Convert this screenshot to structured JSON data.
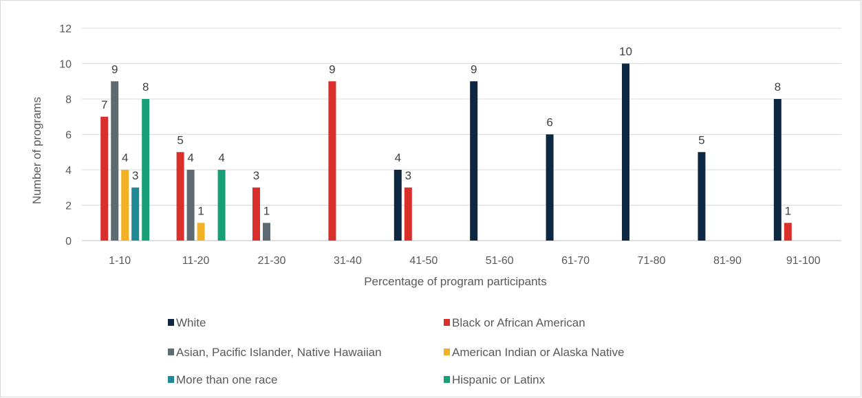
{
  "chart_data": {
    "type": "bar",
    "title": "",
    "xlabel": "Percentage of program participants",
    "ylabel": "Number of programs",
    "ylim": [
      0,
      12
    ],
    "yticks": [
      0,
      2,
      4,
      6,
      8,
      10,
      12
    ],
    "grid": true,
    "legend_position": "bottom",
    "categories": [
      "1-10",
      "11-20",
      "21-30",
      "31-40",
      "41-50",
      "51-60",
      "61-70",
      "71-80",
      "81-90",
      "91-100"
    ],
    "series": [
      {
        "name": "White",
        "color": "#0e2841",
        "values": [
          null,
          null,
          null,
          null,
          4,
          9,
          6,
          10,
          5,
          8
        ]
      },
      {
        "name": "Black or African American",
        "color": "#d9302c",
        "values": [
          7,
          5,
          3,
          9,
          3,
          null,
          null,
          null,
          null,
          1
        ]
      },
      {
        "name": "Asian, Pacific Islander, Native Hawaiian",
        "color": "#5e6a71",
        "values": [
          9,
          4,
          1,
          null,
          null,
          null,
          null,
          null,
          null,
          null
        ]
      },
      {
        "name": "American Indian or Alaska Native",
        "color": "#f2b124",
        "values": [
          4,
          1,
          null,
          null,
          null,
          null,
          null,
          null,
          null,
          null
        ]
      },
      {
        "name": "More than one race",
        "color": "#1f8a95",
        "values": [
          3,
          null,
          null,
          null,
          null,
          null,
          null,
          null,
          null,
          null
        ]
      },
      {
        "name": "Hispanic or Latinx",
        "color": "#17a077",
        "values": [
          8,
          4,
          null,
          null,
          null,
          null,
          null,
          null,
          null,
          null
        ]
      }
    ]
  }
}
